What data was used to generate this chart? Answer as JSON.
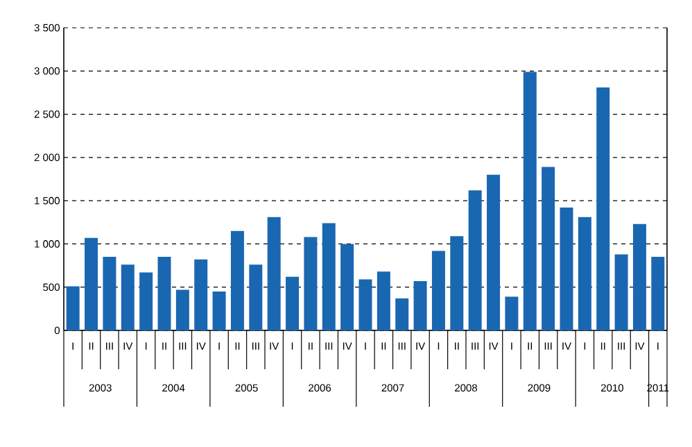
{
  "chart_data": {
    "type": "bar",
    "categories": [
      "I",
      "II",
      "III",
      "IV",
      "I",
      "II",
      "III",
      "IV",
      "I",
      "II",
      "III",
      "IV",
      "I",
      "II",
      "III",
      "IV",
      "I",
      "II",
      "III",
      "IV",
      "I",
      "II",
      "III",
      "IV",
      "I",
      "II",
      "III",
      "IV",
      "I",
      "II",
      "III",
      "IV",
      "I"
    ],
    "values": [
      510,
      1070,
      850,
      760,
      670,
      850,
      470,
      820,
      450,
      1150,
      760,
      1310,
      620,
      1080,
      1240,
      1000,
      590,
      680,
      370,
      570,
      920,
      1090,
      1620,
      1800,
      390,
      2990,
      1890,
      1420,
      1310,
      2810,
      880,
      1230,
      850
    ],
    "color": "#1a67b1",
    "ylim": [
      0,
      3500
    ],
    "yticks": [
      0,
      500,
      {
        "value": 1000,
        "label": "1 000"
      },
      {
        "value": 1500,
        "label": "1 500"
      },
      {
        "value": 2000,
        "label": "2 000"
      },
      {
        "value": 2500,
        "label": "2 500"
      },
      {
        "value": 3000,
        "label": "3 000"
      },
      {
        "value": 3500,
        "label": "3 500"
      }
    ],
    "grid": "y",
    "annotations": [
      "2003",
      "2004",
      "2005",
      "2006",
      "2007",
      "2008",
      "2009",
      "2010",
      "2011"
    ]
  }
}
